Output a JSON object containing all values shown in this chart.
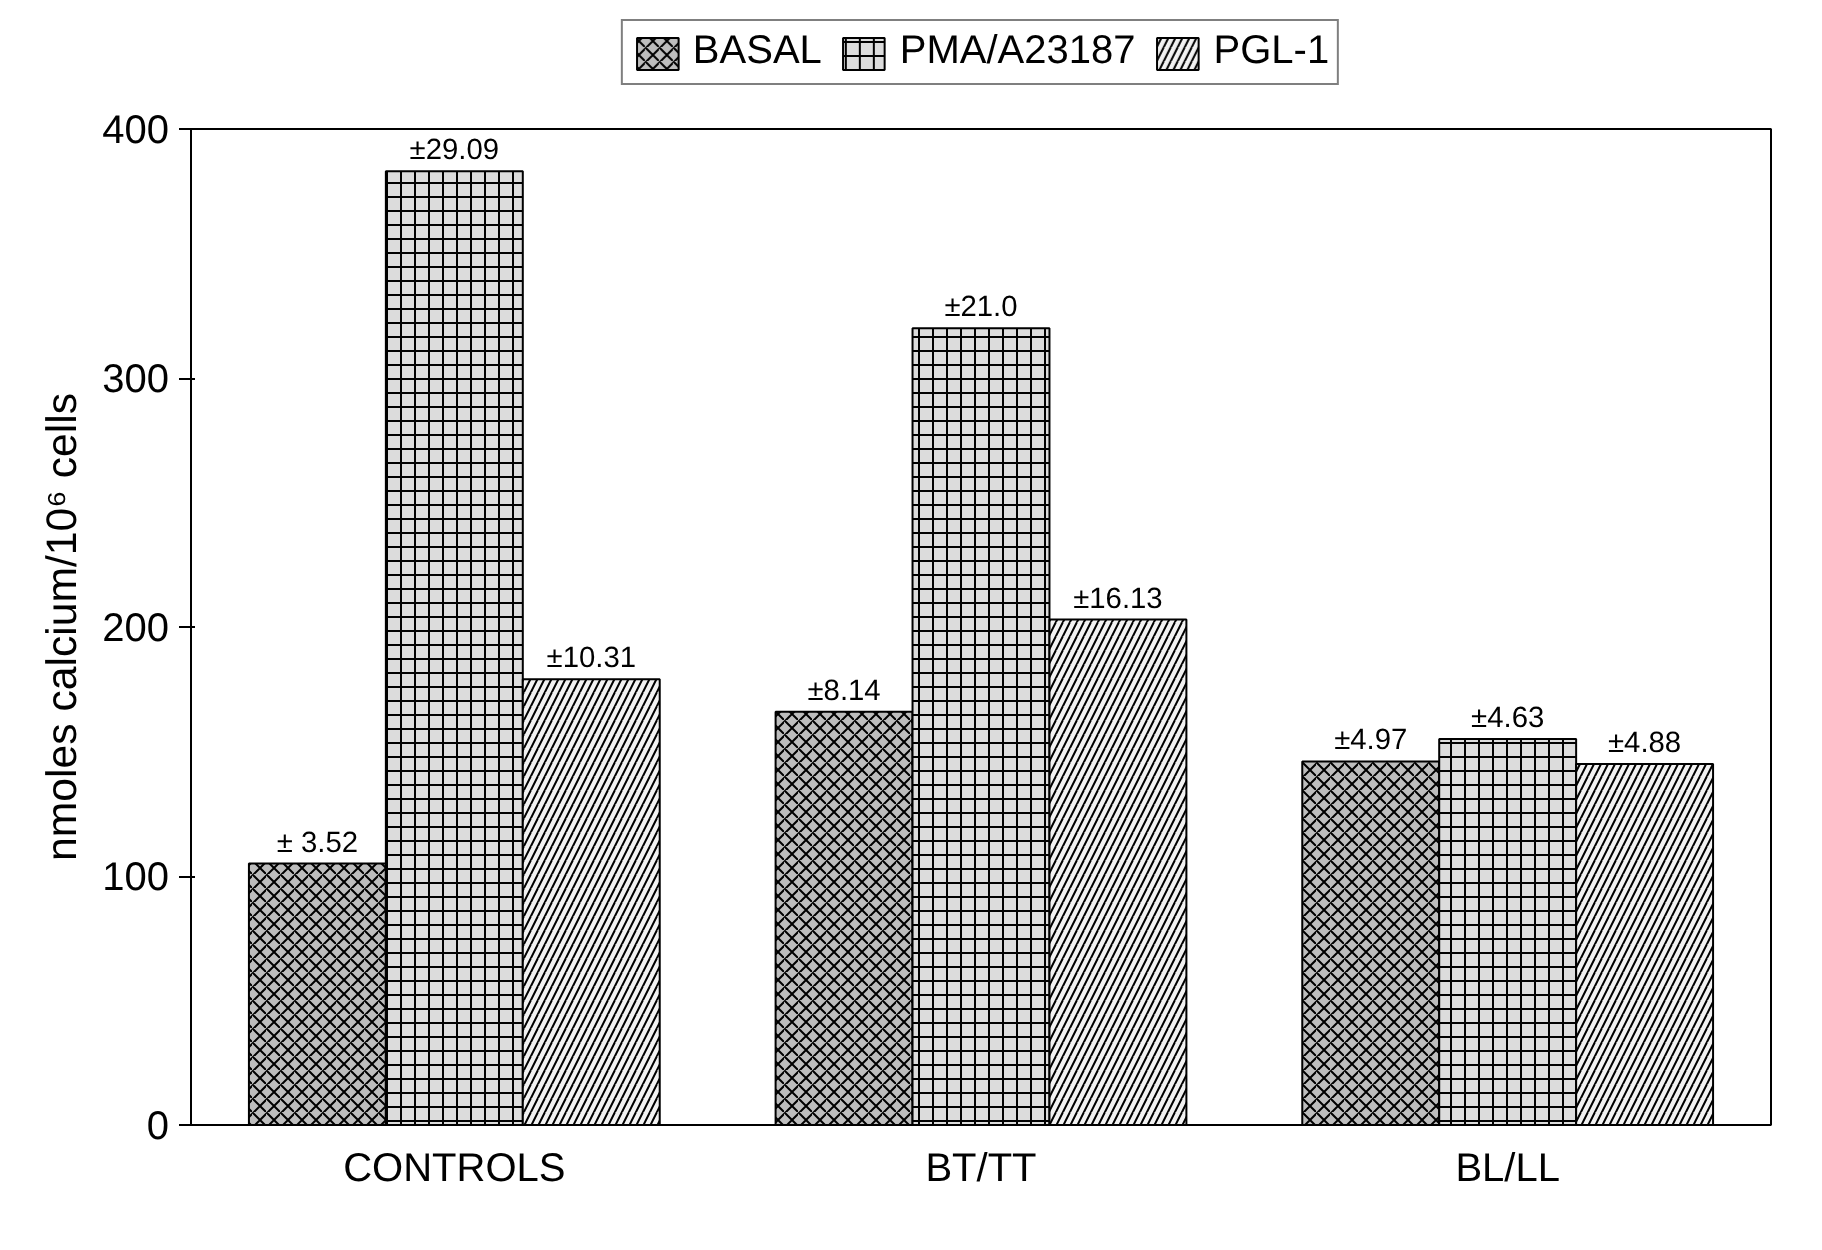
{
  "chart_data": {
    "type": "bar",
    "ylabel": "nmoles calcium/10⁶ cells",
    "categories": [
      "CONTROLS",
      "BT/TT",
      "BL/LL"
    ],
    "series": [
      {
        "name": "BASAL",
        "color": "#bdbdbd",
        "values": [
          105,
          166,
          146
        ]
      },
      {
        "name": "PMA/A23187",
        "color": "#dcdcdc",
        "values": [
          383,
          320,
          155
        ]
      },
      {
        "name": "PGL-1",
        "color": "#f2f2f2",
        "values": [
          179,
          203,
          145
        ]
      }
    ],
    "annotations": [
      "± 3.52",
      "±29.09",
      "±10.31",
      "±8.14",
      "±21.0",
      "±16.13",
      "±4.97",
      "±4.63",
      "±4.88"
    ],
    "ylim": [
      0,
      400
    ],
    "yticks": [
      0,
      100,
      200,
      300,
      400
    ],
    "grid": false,
    "legend": "top"
  }
}
